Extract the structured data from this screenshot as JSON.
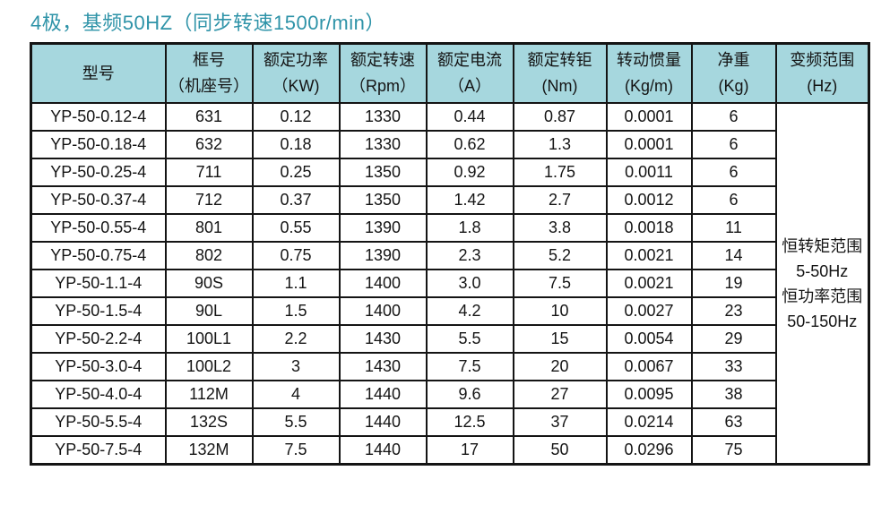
{
  "title": "4极，基频50HZ（同步转速1500r/min）",
  "colors": {
    "title_teal": "#2E93A8",
    "header_bg": "#A6D7DE",
    "border": "#141414"
  },
  "table": {
    "headers": [
      {
        "line1": "型号",
        "line2": ""
      },
      {
        "line1": "框号",
        "line2": "（机座号）"
      },
      {
        "line1": "额定功率",
        "line2": "（KW)"
      },
      {
        "line1": "额定转速",
        "line2": "（Rpm）"
      },
      {
        "line1": "额定电流",
        "line2": "（A）"
      },
      {
        "line1": "额定转钜",
        "line2": "(Nm)"
      },
      {
        "line1": "转动惯量",
        "line2": "(Kg/m)"
      },
      {
        "line1": "净重",
        "line2": "(Kg)"
      },
      {
        "line1": "变频范围",
        "line2": "(Hz)"
      }
    ],
    "rows": [
      [
        "YP-50-0.12-4",
        "631",
        "0.12",
        "1330",
        "0.44",
        "0.87",
        "0.0001",
        "6"
      ],
      [
        "YP-50-0.18-4",
        "632",
        "0.18",
        "1330",
        "0.62",
        "1.3",
        "0.0001",
        "6"
      ],
      [
        "YP-50-0.25-4",
        "711",
        "0.25",
        "1350",
        "0.92",
        "1.75",
        "0.0011",
        "6"
      ],
      [
        "YP-50-0.37-4",
        "712",
        "0.37",
        "1350",
        "1.42",
        "2.7",
        "0.0012",
        "6"
      ],
      [
        "YP-50-0.55-4",
        "801",
        "0.55",
        "1390",
        "1.8",
        "3.8",
        "0.0018",
        "11"
      ],
      [
        "YP-50-0.75-4",
        "802",
        "0.75",
        "1390",
        "2.3",
        "5.2",
        "0.0021",
        "14"
      ],
      [
        "YP-50-1.1-4",
        "90S",
        "1.1",
        "1400",
        "3.0",
        "7.5",
        "0.0021",
        "19"
      ],
      [
        "YP-50-1.5-4",
        "90L",
        "1.5",
        "1400",
        "4.2",
        "10",
        "0.0027",
        "23"
      ],
      [
        "YP-50-2.2-4",
        "100L1",
        "2.2",
        "1430",
        "5.5",
        "15",
        "0.0054",
        "29"
      ],
      [
        "YP-50-3.0-4",
        "100L2",
        "3",
        "1430",
        "7.5",
        "20",
        "0.0067",
        "33"
      ],
      [
        "YP-50-4.0-4",
        "112M",
        "4",
        "1440",
        "9.6",
        "27",
        "0.0095",
        "38"
      ],
      [
        "YP-50-5.5-4",
        "132S",
        "5.5",
        "1440",
        "12.5",
        "37",
        "0.0214",
        "63"
      ],
      [
        "YP-50-7.5-4",
        "132M",
        "7.5",
        "1440",
        "17",
        "50",
        "0.0296",
        "75"
      ]
    ],
    "freq_range_lines": [
      "恒转矩范围",
      "5-50Hz",
      "恒功率范围",
      "50-150Hz"
    ]
  }
}
